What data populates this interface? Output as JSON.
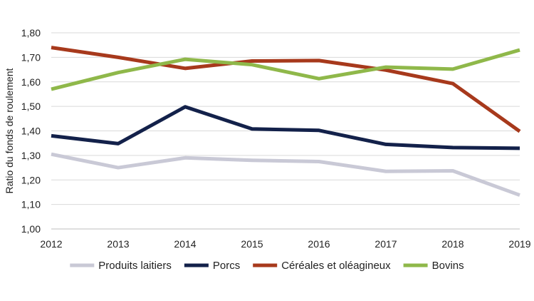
{
  "chart_data": {
    "type": "line",
    "title": "",
    "xlabel": "",
    "ylabel": "Ratio du fonds de roulement",
    "categories": [
      "2012",
      "2013",
      "2014",
      "2015",
      "2016",
      "2017",
      "2018",
      "2019"
    ],
    "ylim": [
      1.0,
      1.8
    ],
    "yticks": [
      "1,00",
      "1,10",
      "1,20",
      "1,30",
      "1,40",
      "1,50",
      "1,60",
      "1,70",
      "1,80"
    ],
    "grid": true,
    "legend_position": "bottom",
    "series": [
      {
        "name": "Produits laitiers",
        "color": "#c9c9d6",
        "values": [
          1.305,
          1.25,
          1.29,
          1.28,
          1.275,
          1.235,
          1.237,
          1.138
        ]
      },
      {
        "name": "Porcs",
        "color": "#13214a",
        "values": [
          1.38,
          1.348,
          1.498,
          1.408,
          1.402,
          1.345,
          1.332,
          1.329
        ]
      },
      {
        "name": "Céréales et oléagineux",
        "color": "#a7391c",
        "values": [
          1.74,
          1.7,
          1.655,
          1.685,
          1.687,
          1.648,
          1.593,
          1.398
        ]
      },
      {
        "name": "Bovins",
        "color": "#8fb84a",
        "values": [
          1.57,
          1.638,
          1.692,
          1.67,
          1.613,
          1.66,
          1.652,
          1.73
        ]
      }
    ]
  }
}
